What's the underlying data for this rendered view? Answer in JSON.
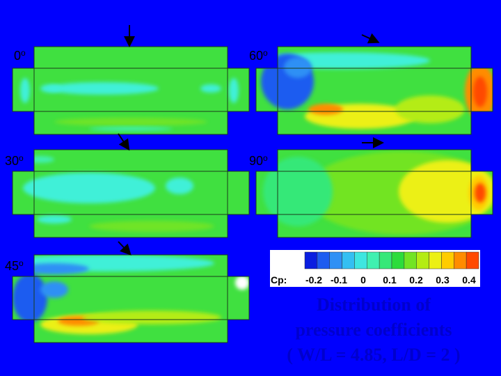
{
  "panels": [
    {
      "label": "0",
      "sup": "o"
    },
    {
      "label": "30",
      "sup": "o"
    },
    {
      "label": "45",
      "sup": "o"
    },
    {
      "label": "60",
      "sup": "o"
    },
    {
      "label": "90",
      "sup": "o"
    }
  ],
  "colorbar": {
    "title": "Cp:",
    "labels": [
      "-0.2",
      "-0.1",
      "0",
      "0.1",
      "0.2",
      "0.3",
      "0.4"
    ],
    "colors": [
      "#0a1ee0",
      "#1e5cf0",
      "#2f90f5",
      "#34bff2",
      "#3ee6e0",
      "#40f0b0",
      "#36e878",
      "#2cdc3c",
      "#72e424",
      "#b4ec14",
      "#ecf014",
      "#ffcc00",
      "#ff8c00",
      "#ff4a00"
    ]
  },
  "caption": [
    "Distribution of",
    "pressure coefficients",
    "( W/L = 4.85, L/D = 2 )"
  ]
}
